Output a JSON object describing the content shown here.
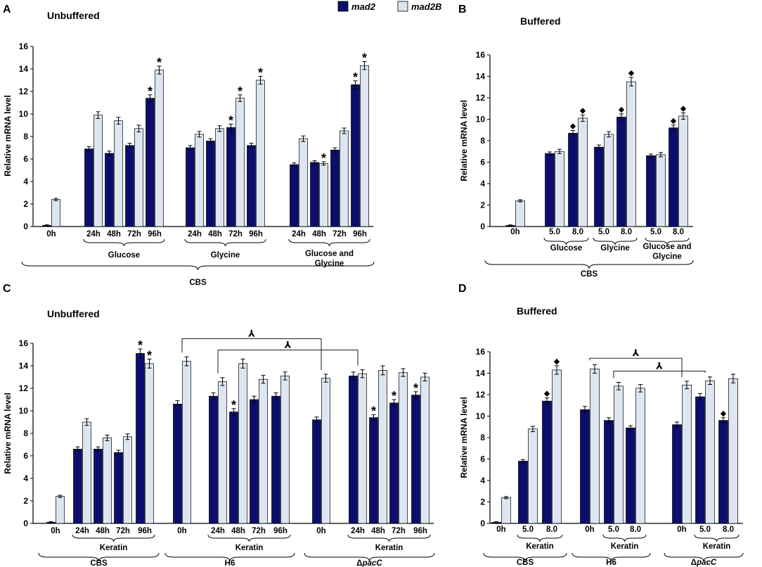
{
  "legend": {
    "series": [
      {
        "name": "mad2",
        "color": "#0c0e6e"
      },
      {
        "name": "mad2B",
        "color": "#dde6f0"
      }
    ]
  },
  "markers": {
    "star": "*",
    "diamond": "◆",
    "arrow": "⅄"
  },
  "chart_data": [
    {
      "panel": "A",
      "type": "bar",
      "title": "Unbuffered",
      "ylabel": "Relative mRNA level",
      "ylim": [
        0,
        16
      ],
      "yticks": [
        0,
        2,
        4,
        6,
        8,
        10,
        12,
        14,
        16
      ],
      "categories": [
        "0h",
        "24h",
        "48h",
        "72h",
        "96h",
        "24h",
        "48h",
        "72h",
        "96h",
        "24h",
        "48h",
        "72h",
        "96h"
      ],
      "series": [
        {
          "name": "mad2",
          "values": [
            0.1,
            6.9,
            6.5,
            7.2,
            11.4,
            7.0,
            7.6,
            8.8,
            7.2,
            5.5,
            5.7,
            6.8,
            12.6
          ],
          "errors": [
            0.05,
            0.2,
            0.2,
            0.2,
            0.3,
            0.2,
            0.2,
            0.3,
            0.2,
            0.15,
            0.15,
            0.2,
            0.35
          ],
          "markers": [
            "",
            "",
            "",
            "",
            "*",
            "",
            "",
            "*",
            "",
            "",
            "",
            "",
            "*"
          ]
        },
        {
          "name": "mad2B",
          "values": [
            2.4,
            9.9,
            9.4,
            8.7,
            13.9,
            8.2,
            8.7,
            11.4,
            13.0,
            7.8,
            5.6,
            8.5,
            14.3
          ],
          "errors": [
            0.1,
            0.3,
            0.3,
            0.3,
            0.35,
            0.25,
            0.25,
            0.3,
            0.35,
            0.25,
            0.15,
            0.25,
            0.35
          ],
          "markers": [
            "",
            "",
            "",
            "",
            "*",
            "",
            "",
            "*",
            "*",
            "",
            "*",
            "",
            "*"
          ]
        }
      ],
      "group_labels": [
        {
          "text": "Glucose",
          "cats": [
            1,
            4
          ]
        },
        {
          "text": "Glycine",
          "cats": [
            5,
            8
          ]
        },
        {
          "text": "Glucose and",
          "text2": "Glycine",
          "cats": [
            9,
            12
          ]
        }
      ],
      "super_label": {
        "text": "CBS",
        "cats": [
          0,
          12
        ]
      }
    },
    {
      "panel": "B",
      "type": "bar",
      "title": "Buffered",
      "ylabel": "Relative mRNA level",
      "ylim": [
        0,
        16
      ],
      "yticks": [
        0,
        2,
        4,
        6,
        8,
        10,
        12,
        14,
        16
      ],
      "categories": [
        "0h",
        "5.0",
        "8.0",
        "5.0",
        "8.0",
        "5.0",
        "8.0"
      ],
      "series": [
        {
          "name": "mad2",
          "values": [
            0.1,
            6.8,
            8.7,
            7.4,
            10.2,
            6.6,
            9.2
          ],
          "errors": [
            0.05,
            0.15,
            0.25,
            0.2,
            0.3,
            0.15,
            0.25
          ],
          "markers": [
            "",
            "",
            "◆",
            "",
            "◆",
            "",
            "◆"
          ]
        },
        {
          "name": "mad2B",
          "values": [
            2.4,
            7.0,
            10.1,
            8.6,
            13.5,
            6.7,
            10.3
          ],
          "errors": [
            0.1,
            0.2,
            0.3,
            0.25,
            0.4,
            0.2,
            0.3
          ],
          "markers": [
            "",
            "",
            "◆",
            "",
            "◆",
            "",
            "◆"
          ]
        }
      ],
      "group_labels": [
        {
          "text": "Glucose",
          "cats": [
            1,
            2
          ]
        },
        {
          "text": "Glycine",
          "cats": [
            3,
            4
          ]
        },
        {
          "text": "Glucose and",
          "text2": "Glycine",
          "cats": [
            5,
            6
          ]
        }
      ],
      "super_label": {
        "text": "CBS",
        "cats": [
          0,
          6
        ]
      }
    },
    {
      "panel": "C",
      "type": "bar",
      "title": "Unbuffered",
      "ylabel": "Relative mRNA level",
      "ylim": [
        0,
        16
      ],
      "yticks": [
        0,
        2,
        4,
        6,
        8,
        10,
        12,
        14,
        16
      ],
      "categories": [
        "0h",
        "24h",
        "48h",
        "72h",
        "96h",
        "0h",
        "24h",
        "48h",
        "72h",
        "96h",
        "0h",
        "24h",
        "48h",
        "72h",
        "96h"
      ],
      "series": [
        {
          "name": "mad2",
          "values": [
            0.1,
            6.6,
            6.6,
            6.3,
            15.1,
            10.6,
            11.3,
            9.9,
            11.0,
            11.3,
            9.2,
            13.1,
            9.4,
            10.7,
            11.4
          ],
          "errors": [
            0.05,
            0.2,
            0.2,
            0.2,
            0.4,
            0.3,
            0.3,
            0.3,
            0.3,
            0.3,
            0.25,
            0.35,
            0.25,
            0.3,
            0.3
          ],
          "markers": [
            "",
            "",
            "",
            "",
            "*",
            "",
            "",
            "*",
            "",
            "",
            "",
            "",
            "*",
            "*",
            "*"
          ]
        },
        {
          "name": "mad2B",
          "values": [
            2.4,
            9.0,
            7.6,
            7.7,
            14.2,
            14.4,
            12.6,
            14.2,
            12.8,
            13.1,
            12.9,
            13.3,
            13.6,
            13.4,
            13.0
          ],
          "errors": [
            0.1,
            0.3,
            0.25,
            0.25,
            0.4,
            0.4,
            0.35,
            0.4,
            0.35,
            0.35,
            0.35,
            0.35,
            0.4,
            0.35,
            0.35
          ],
          "markers": [
            "",
            "",
            "",
            "",
            "*",
            "",
            "",
            "",
            "",
            "",
            "",
            "",
            "",
            "",
            ""
          ]
        }
      ],
      "group_labels": [
        {
          "text": "Keratin",
          "cats": [
            1,
            4
          ]
        },
        {
          "text": "Keratin",
          "cats": [
            6,
            9
          ]
        },
        {
          "text": "Keratin",
          "cats": [
            11,
            14
          ]
        }
      ],
      "super_labels": [
        {
          "text": "CBS",
          "cats": [
            0,
            4
          ]
        },
        {
          "text": "H6",
          "cats": [
            5,
            9
          ]
        },
        {
          "text": "ΔpacC",
          "cats": [
            10,
            14
          ]
        }
      ],
      "brackets": [
        {
          "from": 5,
          "to": 10,
          "level": 16.4
        },
        {
          "from": 6,
          "to": 11,
          "level": 15.4
        }
      ]
    },
    {
      "panel": "D",
      "type": "bar",
      "title": "Buffered",
      "ylabel": "Relative mRNA level",
      "ylim": [
        0,
        16
      ],
      "yticks": [
        0,
        2,
        4,
        6,
        8,
        10,
        12,
        14,
        16
      ],
      "categories": [
        "0h",
        "5.0",
        "8.0",
        "0h",
        "5.0",
        "8.0",
        "0h",
        "5.0",
        "8.0"
      ],
      "series": [
        {
          "name": "mad2",
          "values": [
            0.1,
            5.8,
            11.4,
            10.6,
            9.6,
            8.9,
            9.2,
            11.8,
            9.6
          ],
          "errors": [
            0.05,
            0.15,
            0.3,
            0.3,
            0.25,
            0.2,
            0.25,
            0.3,
            0.25
          ],
          "markers": [
            "",
            "",
            "◆",
            "",
            "",
            "",
            "",
            "",
            "◆"
          ]
        },
        {
          "name": "mad2B",
          "values": [
            2.4,
            8.8,
            14.3,
            14.4,
            12.8,
            12.6,
            12.9,
            13.3,
            13.5
          ],
          "errors": [
            0.1,
            0.25,
            0.4,
            0.4,
            0.35,
            0.35,
            0.35,
            0.35,
            0.4
          ],
          "markers": [
            "",
            "",
            "◆",
            "",
            "",
            "",
            "",
            "",
            ""
          ]
        }
      ],
      "group_labels": [
        {
          "text": "Keratin",
          "cats": [
            1,
            2
          ]
        },
        {
          "text": "Keratin",
          "cats": [
            4,
            5
          ]
        },
        {
          "text": "Keratin",
          "cats": [
            7,
            8
          ]
        }
      ],
      "super_labels": [
        {
          "text": "CBS",
          "cats": [
            0,
            2
          ]
        },
        {
          "text": "H6",
          "cats": [
            3,
            5
          ]
        },
        {
          "text": "ΔpacC",
          "cats": [
            6,
            8
          ]
        }
      ],
      "brackets": [
        {
          "from": 3,
          "to": 6,
          "level": 15.4
        },
        {
          "from": 4,
          "to": 7,
          "level": 14.2
        }
      ]
    }
  ]
}
